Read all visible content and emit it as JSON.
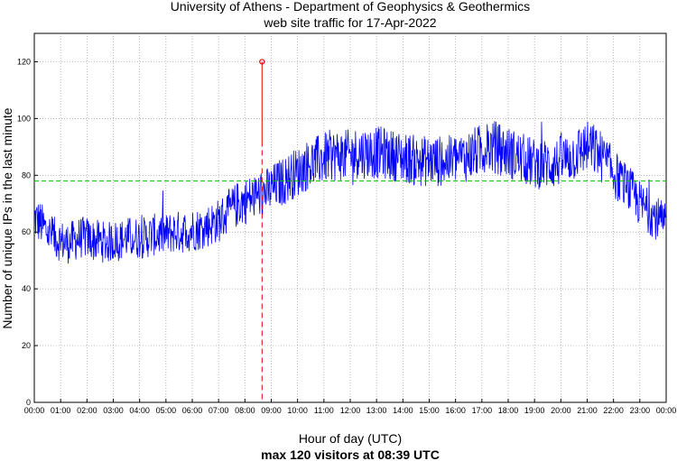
{
  "chart_data": {
    "type": "line",
    "title": "University of Athens - Department of Geophysics & Geothermics",
    "subtitle": "web site traffic for 17-Apr-2022",
    "xlabel": "Hour of day (UTC)",
    "ylabel": "Number of unique IPs in the last minute",
    "footer": "max 120 visitors at 08:39 UTC",
    "x_ticks": [
      "00:00",
      "01:00",
      "02:00",
      "03:00",
      "04:00",
      "05:00",
      "06:00",
      "07:00",
      "08:00",
      "09:00",
      "10:00",
      "11:00",
      "12:00",
      "13:00",
      "14:00",
      "15:00",
      "16:00",
      "17:00",
      "18:00",
      "19:00",
      "20:00",
      "21:00",
      "22:00",
      "23:00",
      "00:00"
    ],
    "y_ticks": [
      "0",
      "20",
      "40",
      "60",
      "80",
      "100",
      "120"
    ],
    "xlim": [
      0,
      24
    ],
    "ylim": [
      0,
      130
    ],
    "grid": true,
    "mean_line": {
      "value": 78,
      "color": "#00c000"
    },
    "max_marker": {
      "hour": 8.65,
      "value": 120,
      "label": "08:39",
      "color": "#e00000"
    },
    "series": [
      {
        "name": "unique IPs per minute",
        "color": "#0000ff",
        "sample_step_hours": 0.25,
        "sampled_trend": [
          65,
          63,
          60,
          58,
          57,
          56,
          57,
          58,
          58,
          57,
          57,
          56,
          57,
          57,
          58,
          58,
          58,
          58,
          59,
          59,
          59,
          60,
          60,
          60,
          61,
          61,
          62,
          63,
          64,
          66,
          68,
          70,
          71,
          72,
          73,
          74,
          75,
          77,
          78,
          80,
          81,
          83,
          84,
          85,
          86,
          87,
          87,
          87,
          87,
          88,
          88,
          88,
          88,
          88,
          87,
          87,
          86,
          86,
          85,
          85,
          85,
          85,
          85,
          85,
          86,
          86,
          87,
          88,
          89,
          90,
          90,
          89,
          88,
          87,
          86,
          85,
          84,
          84,
          84,
          84,
          85,
          86,
          87,
          89,
          90,
          89,
          87,
          84,
          81,
          78,
          76,
          73,
          70,
          68,
          66,
          64,
          62
        ]
      }
    ]
  }
}
